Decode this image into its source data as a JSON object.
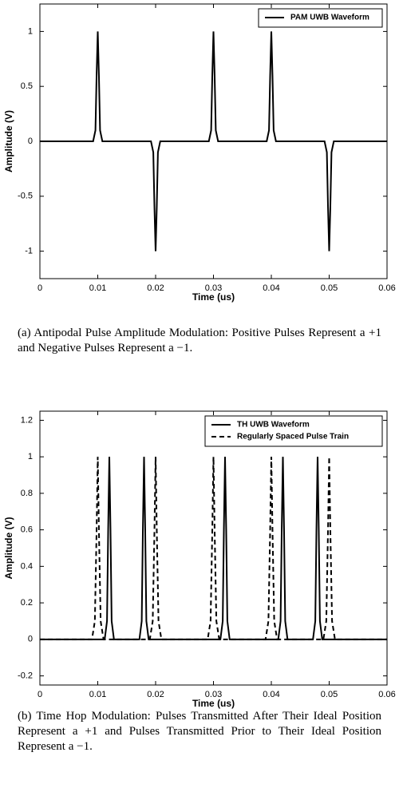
{
  "chart_data": [
    {
      "type": "line",
      "caption": "(a) Antipodal Pulse Amplitude Modulation: Positive Pulses Represent a +1 and Negative Pulses Represent a −1.",
      "xlabel": "Time (us)",
      "ylabel": "Amplitude (V)",
      "xlim": [
        0,
        0.06
      ],
      "ylim": [
        -1.25,
        1.25
      ],
      "xticks": [
        0,
        0.01,
        0.02,
        0.03,
        0.04,
        0.05,
        0.06
      ],
      "yticks": [
        -1,
        -0.5,
        0,
        0.5,
        1
      ],
      "legend": "upper-right",
      "series": [
        {
          "name": "PAM UWB Waveform",
          "color": "#000000",
          "dash": "solid",
          "x": [
            0,
            0.0092,
            0.0096,
            0.0098,
            0.01,
            0.0102,
            0.0104,
            0.0108,
            0.0192,
            0.0196,
            0.0198,
            0.02,
            0.0202,
            0.0204,
            0.0208,
            0.0292,
            0.0296,
            0.0298,
            0.03,
            0.0302,
            0.0304,
            0.0308,
            0.0392,
            0.0396,
            0.0398,
            0.04,
            0.0402,
            0.0404,
            0.0408,
            0.0492,
            0.0496,
            0.0498,
            0.05,
            0.0502,
            0.0504,
            0.0508,
            0.06
          ],
          "values": [
            0,
            0,
            0.1,
            0.6,
            1,
            0.6,
            0.1,
            0,
            0,
            -0.1,
            -0.6,
            -1,
            -0.6,
            -0.1,
            0,
            0,
            0.1,
            0.6,
            1,
            0.6,
            0.1,
            0,
            0,
            0.1,
            0.6,
            1,
            0.6,
            0.1,
            0,
            0,
            -0.1,
            -0.6,
            -1,
            -0.6,
            -0.1,
            0,
            0
          ]
        }
      ]
    },
    {
      "type": "line",
      "caption": "(b) Time Hop Modulation: Pulses Transmitted After Their Ideal Position Represent a +1 and Pulses Transmitted Prior to Their Ideal Position Represent a −1.",
      "xlabel": "Time (us)",
      "ylabel": "Amplitude (V)",
      "xlim": [
        0,
        0.06
      ],
      "ylim": [
        -0.25,
        1.25
      ],
      "xticks": [
        0,
        0.01,
        0.02,
        0.03,
        0.04,
        0.05,
        0.06
      ],
      "yticks": [
        -0.2,
        0,
        0.2,
        0.4,
        0.6,
        0.8,
        1,
        1.2
      ],
      "legend": "upper-right",
      "series": [
        {
          "name": "TH UWB Waveform",
          "color": "#000000",
          "dash": "solid",
          "x": [
            0,
            0.0112,
            0.0116,
            0.0118,
            0.012,
            0.0122,
            0.0124,
            0.0128,
            0.0172,
            0.0176,
            0.0178,
            0.018,
            0.0182,
            0.0184,
            0.0188,
            0.0312,
            0.0316,
            0.0318,
            0.032,
            0.0322,
            0.0324,
            0.0328,
            0.0412,
            0.0416,
            0.0418,
            0.042,
            0.0422,
            0.0424,
            0.0428,
            0.0472,
            0.0476,
            0.0478,
            0.048,
            0.0482,
            0.0484,
            0.0488,
            0.06
          ],
          "values": [
            0,
            0,
            0.1,
            0.6,
            1,
            0.6,
            0.1,
            0,
            0,
            0.1,
            0.6,
            1,
            0.6,
            0.1,
            0,
            0,
            0.1,
            0.6,
            1,
            0.6,
            0.1,
            0,
            0,
            0.1,
            0.6,
            1,
            0.6,
            0.1,
            0,
            0,
            0.1,
            0.6,
            1,
            0.6,
            0.1,
            0,
            0
          ]
        },
        {
          "name": "Regularly Spaced Pulse Train",
          "color": "#000000",
          "dash": "dashed",
          "x": [
            0,
            0.009,
            0.0095,
            0.0098,
            0.01,
            0.0102,
            0.0105,
            0.011,
            0.019,
            0.0195,
            0.0198,
            0.02,
            0.0202,
            0.0205,
            0.021,
            0.029,
            0.0295,
            0.0298,
            0.03,
            0.0302,
            0.0305,
            0.031,
            0.039,
            0.0395,
            0.0398,
            0.04,
            0.0402,
            0.0405,
            0.041,
            0.049,
            0.0495,
            0.0498,
            0.05,
            0.0502,
            0.0505,
            0.051,
            0.06
          ],
          "values": [
            0,
            0,
            0.1,
            0.6,
            1,
            0.6,
            0.1,
            0,
            0,
            0.1,
            0.6,
            1,
            0.6,
            0.1,
            0,
            0,
            0.1,
            0.6,
            1,
            0.6,
            0.1,
            0,
            0,
            0.1,
            0.6,
            1,
            0.6,
            0.1,
            0,
            0,
            0.1,
            0.6,
            1,
            0.6,
            0.1,
            0,
            0
          ]
        }
      ]
    }
  ]
}
